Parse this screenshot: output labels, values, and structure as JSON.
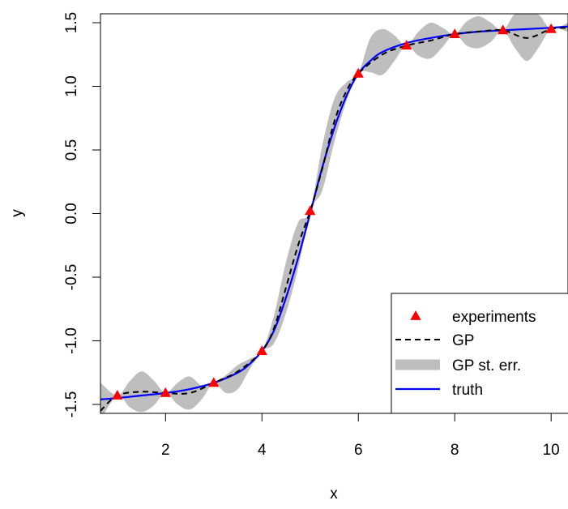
{
  "chart_data": {
    "type": "line",
    "title": "",
    "xlabel": "x",
    "ylabel": "y",
    "xlim": [
      0.65,
      10.35
    ],
    "ylim": [
      -1.57,
      1.57
    ],
    "x_ticks": [
      2,
      4,
      6,
      8,
      10
    ],
    "x_tick_labels": [
      "2",
      "4",
      "6",
      "8",
      "10"
    ],
    "y_ticks": [
      -1.5,
      -1.0,
      -0.5,
      0.0,
      0.5,
      1.0,
      1.5
    ],
    "y_tick_labels": [
      "-1.5",
      "-1.0",
      "-0.5",
      "0.0",
      "0.5",
      "1.0",
      "1.5"
    ],
    "grid": false,
    "legend_position": "bottom-right",
    "series": [
      {
        "name": "experiments",
        "kind": "points",
        "color": "#ff0000",
        "marker": "triangle",
        "x": [
          1,
          2,
          3,
          4,
          5,
          6,
          7,
          8,
          9,
          10
        ],
        "y": [
          -1.43,
          -1.41,
          -1.33,
          -1.08,
          0.02,
          1.1,
          1.32,
          1.41,
          1.44,
          1.45
        ]
      },
      {
        "name": "GP",
        "kind": "line",
        "color": "#000000",
        "dash": true,
        "x": [
          0.65,
          1.0,
          1.5,
          2.0,
          2.5,
          3.0,
          3.5,
          4.0,
          4.25,
          4.5,
          4.75,
          5.0,
          5.25,
          5.5,
          5.75,
          6.0,
          6.5,
          7.0,
          7.5,
          8.0,
          8.5,
          9.0,
          9.5,
          10.0,
          10.35
        ],
        "y": [
          -1.55,
          -1.43,
          -1.4,
          -1.41,
          -1.41,
          -1.33,
          -1.24,
          -1.08,
          -0.9,
          -0.58,
          -0.25,
          0.02,
          0.35,
          0.72,
          0.96,
          1.1,
          1.25,
          1.32,
          1.36,
          1.41,
          1.43,
          1.44,
          1.38,
          1.45,
          1.46
        ]
      },
      {
        "name": "GP st. err.",
        "kind": "band",
        "color": "#bebebe",
        "x": [
          0.65,
          1.0,
          1.25,
          1.5,
          1.75,
          2.0,
          2.25,
          2.5,
          2.75,
          3.0,
          3.25,
          3.5,
          3.75,
          4.0,
          4.25,
          4.5,
          4.75,
          5.0,
          5.25,
          5.5,
          5.75,
          6.0,
          6.25,
          6.5,
          6.75,
          7.0,
          7.25,
          7.5,
          7.75,
          8.0,
          8.25,
          8.5,
          8.75,
          9.0,
          9.25,
          9.5,
          9.75,
          10.0,
          10.35
        ],
        "lower": [
          -1.62,
          -1.43,
          -1.52,
          -1.56,
          -1.51,
          -1.41,
          -1.5,
          -1.54,
          -1.46,
          -1.33,
          -1.41,
          -1.38,
          -1.22,
          -1.08,
          -1.02,
          -0.78,
          -0.43,
          0.02,
          0.18,
          0.56,
          0.88,
          1.1,
          1.11,
          1.09,
          1.2,
          1.32,
          1.24,
          1.22,
          1.31,
          1.41,
          1.32,
          1.3,
          1.35,
          1.44,
          1.3,
          1.2,
          1.31,
          1.45,
          1.43
        ],
        "upper": [
          -1.33,
          -1.43,
          -1.32,
          -1.24,
          -1.31,
          -1.41,
          -1.33,
          -1.28,
          -1.35,
          -1.33,
          -1.27,
          -1.19,
          -1.14,
          -1.08,
          -0.8,
          -0.38,
          -0.07,
          0.02,
          0.53,
          0.9,
          1.03,
          1.1,
          1.38,
          1.45,
          1.4,
          1.32,
          1.43,
          1.5,
          1.46,
          1.41,
          1.51,
          1.55,
          1.5,
          1.44,
          1.57,
          1.57,
          1.56,
          1.45,
          1.5
        ]
      },
      {
        "name": "truth",
        "kind": "line",
        "color": "#0000ff",
        "dash": false,
        "x": [
          0.65,
          1.0,
          1.5,
          2.0,
          2.5,
          3.0,
          3.5,
          3.75,
          4.0,
          4.25,
          4.5,
          4.75,
          5.0,
          5.25,
          5.5,
          5.75,
          6.0,
          6.25,
          6.5,
          7.0,
          7.5,
          8.0,
          8.5,
          9.0,
          9.5,
          10.0,
          10.35
        ],
        "y": [
          -1.46,
          -1.45,
          -1.43,
          -1.41,
          -1.38,
          -1.33,
          -1.25,
          -1.18,
          -1.08,
          -0.92,
          -0.66,
          -0.35,
          0.0,
          0.36,
          0.67,
          0.92,
          1.1,
          1.2,
          1.27,
          1.34,
          1.38,
          1.41,
          1.43,
          1.44,
          1.45,
          1.46,
          1.47
        ]
      }
    ]
  }
}
